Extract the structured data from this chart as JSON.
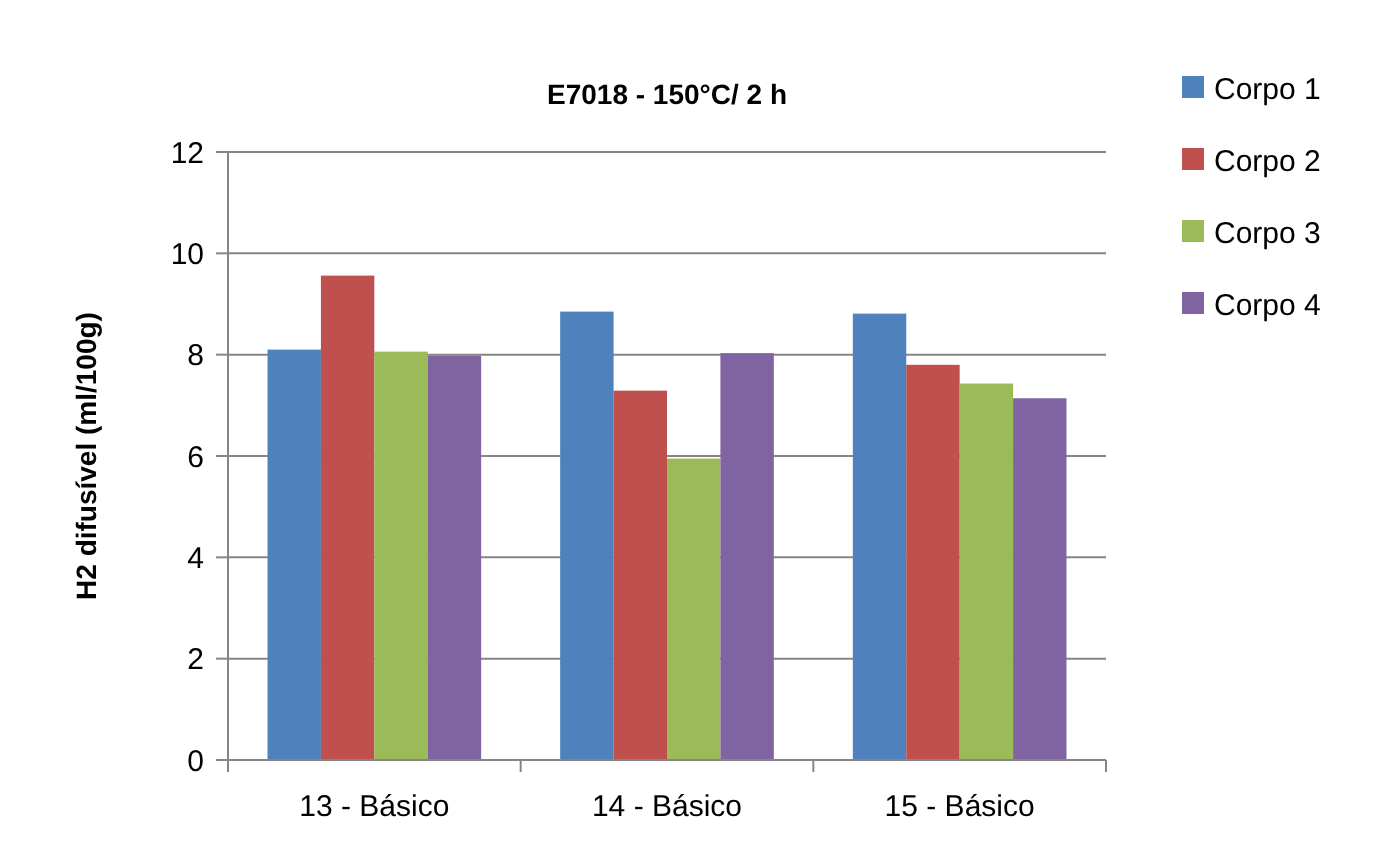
{
  "chart_data": {
    "type": "bar",
    "title": "E7018 - 150°C/ 2 h",
    "ylabel": "H2 difusível (ml/100g)",
    "categories": [
      "13 - Básico",
      "14 - Básico",
      "15 - Básico"
    ],
    "series": [
      {
        "name": "Corpo 1",
        "color": "#4f81bd",
        "values": [
          8.1,
          8.85,
          8.81
        ]
      },
      {
        "name": "Corpo 2",
        "color": "#c0504d",
        "values": [
          9.56,
          7.29,
          7.8
        ]
      },
      {
        "name": "Corpo 3",
        "color": "#9bbb59",
        "values": [
          8.06,
          5.95,
          7.43
        ]
      },
      {
        "name": "Corpo 4",
        "color": "#8064a2",
        "values": [
          7.98,
          8.03,
          7.14
        ]
      }
    ],
    "ylim": [
      0,
      12
    ],
    "yticks": [
      0,
      2,
      4,
      6,
      8,
      10,
      12
    ],
    "grid": "y",
    "legend": "right"
  }
}
